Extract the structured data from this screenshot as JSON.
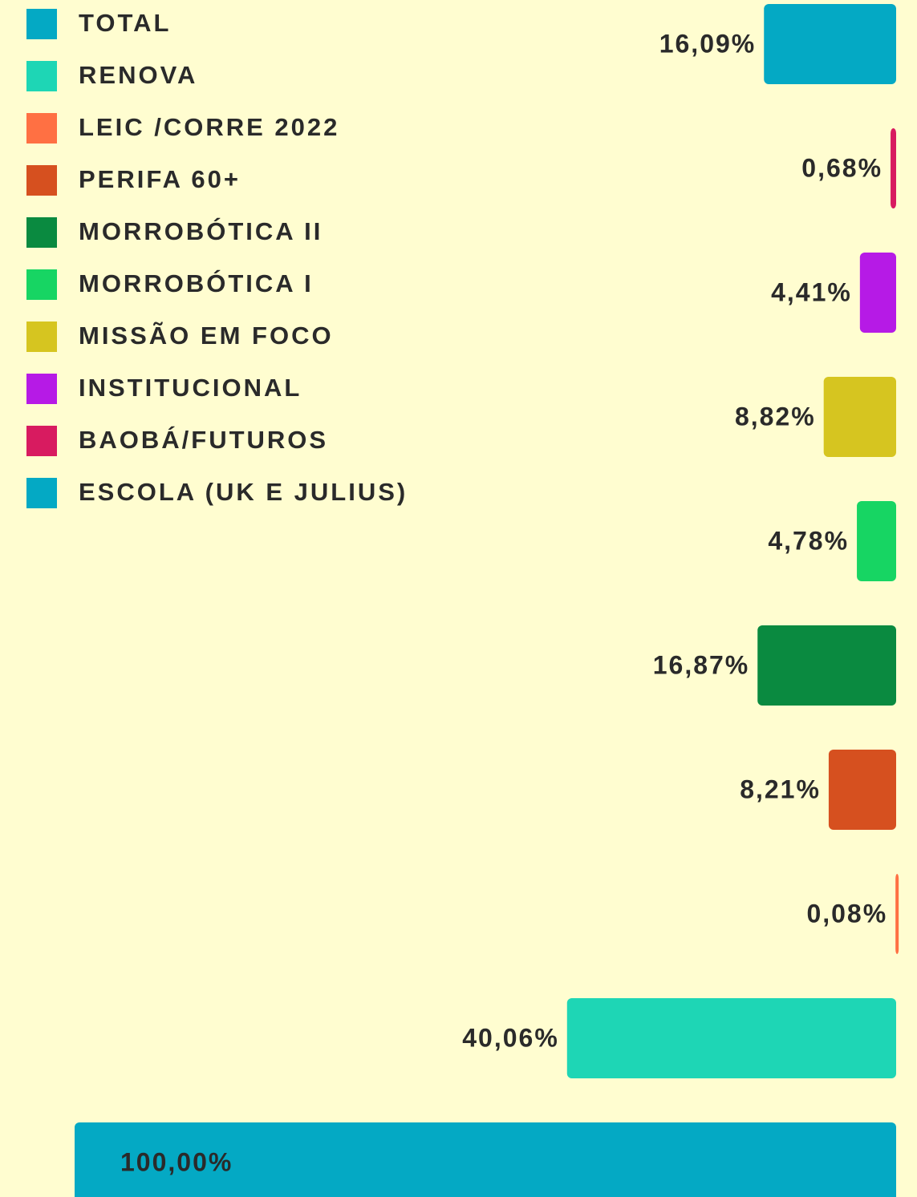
{
  "chart_data": {
    "type": "bar",
    "categories": [
      "TOTAL",
      "RENOVA",
      "LEIC /CORRE 2022",
      "PERIFA 60+",
      "MORROBÓTICA II",
      "MORROBÓTICA I",
      "MISSÃO EM FOCO",
      "INSTITUCIONAL",
      "BAOBÁ/FUTUROS",
      "ESCOLA (UK E JULIUS)"
    ],
    "values": [
      100,
      40.06,
      0.08,
      8.21,
      16.87,
      4.78,
      8.82,
      4.41,
      0.68,
      16.09
    ],
    "value_labels": [
      "100,00%",
      "40,06%",
      "0,08%",
      "8,21%",
      "16,87%",
      "4,78%",
      "8,82%",
      "4,41%",
      "0,68%",
      "16,09%"
    ],
    "colors": [
      "#04a9c4",
      "#1ed6b5",
      "#ff7043",
      "#d6501f",
      "#0a8a40",
      "#17d563",
      "#d6c520",
      "#b61ae6",
      "#d81b60",
      "#04a9c4"
    ],
    "xlim": [
      0,
      100
    ]
  }
}
